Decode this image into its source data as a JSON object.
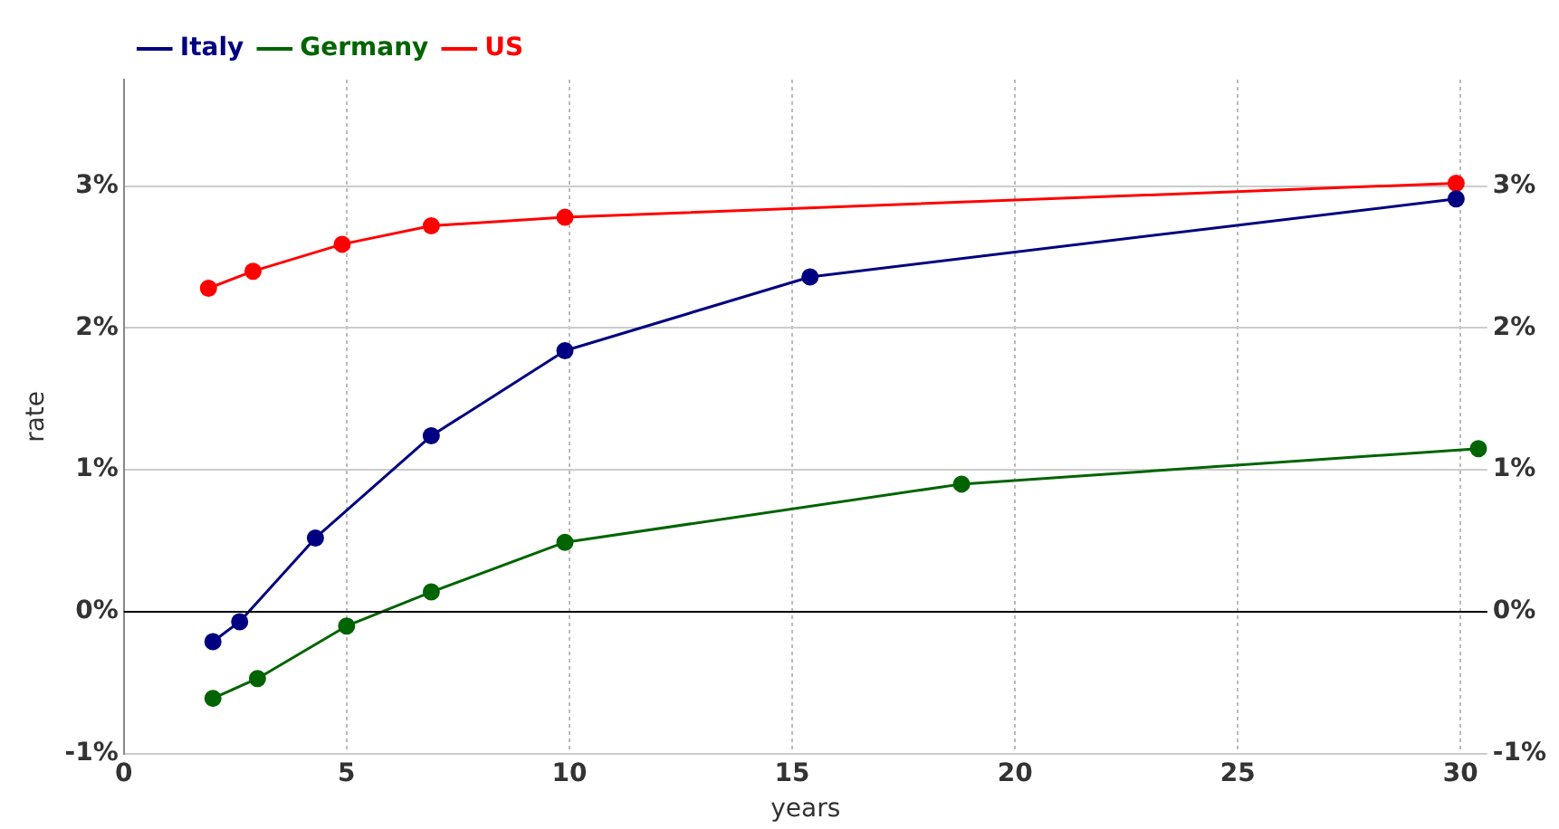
{
  "chart_data": {
    "type": "line",
    "xlabel": "years",
    "ylabel": "rate",
    "series": [
      {
        "name": "Italy",
        "color": "#000080",
        "x": [
          2,
          2.6,
          4.3,
          6.9,
          9.9,
          15.4,
          29.9
        ],
        "values": [
          -0.21,
          -0.07,
          0.52,
          1.24,
          1.84,
          2.36,
          2.91
        ]
      },
      {
        "name": "Germany",
        "color": "#006400",
        "x": [
          2,
          3,
          5,
          6.9,
          9.9,
          18.8,
          30.4
        ],
        "values": [
          -0.61,
          -0.47,
          -0.1,
          0.14,
          0.49,
          0.9,
          1.15
        ]
      },
      {
        "name": "US",
        "color": "#ff0000",
        "x": [
          1.9,
          2.9,
          4.9,
          6.9,
          9.9,
          29.9
        ],
        "values": [
          2.28,
          2.4,
          2.59,
          2.72,
          2.78,
          3.02
        ]
      }
    ],
    "xlim": [
      0,
      30.6
    ],
    "xticks": [
      0,
      5,
      10,
      15,
      20,
      25,
      30
    ],
    "ylim": [
      -1,
      3.75
    ],
    "yticks": [
      {
        "value": -1,
        "label": "-1%"
      },
      {
        "value": 0,
        "label": "0%"
      },
      {
        "value": 1,
        "label": "1%"
      },
      {
        "value": 2,
        "label": "2%"
      },
      {
        "value": 3,
        "label": "3%"
      }
    ],
    "y2lim": [
      -1,
      3.75
    ],
    "y2ticks": [
      {
        "value": -1,
        "label": "-1%"
      },
      {
        "value": 0,
        "label": "0%"
      },
      {
        "value": 1,
        "label": "1%"
      },
      {
        "value": 2,
        "label": "2%"
      },
      {
        "value": 3,
        "label": "3%"
      }
    ],
    "ref_lines": [
      {
        "axis": "y",
        "value": 0,
        "color": "#000000"
      }
    ],
    "grid": true,
    "legend": "top left",
    "marker": "circle",
    "line_style": "solid"
  }
}
